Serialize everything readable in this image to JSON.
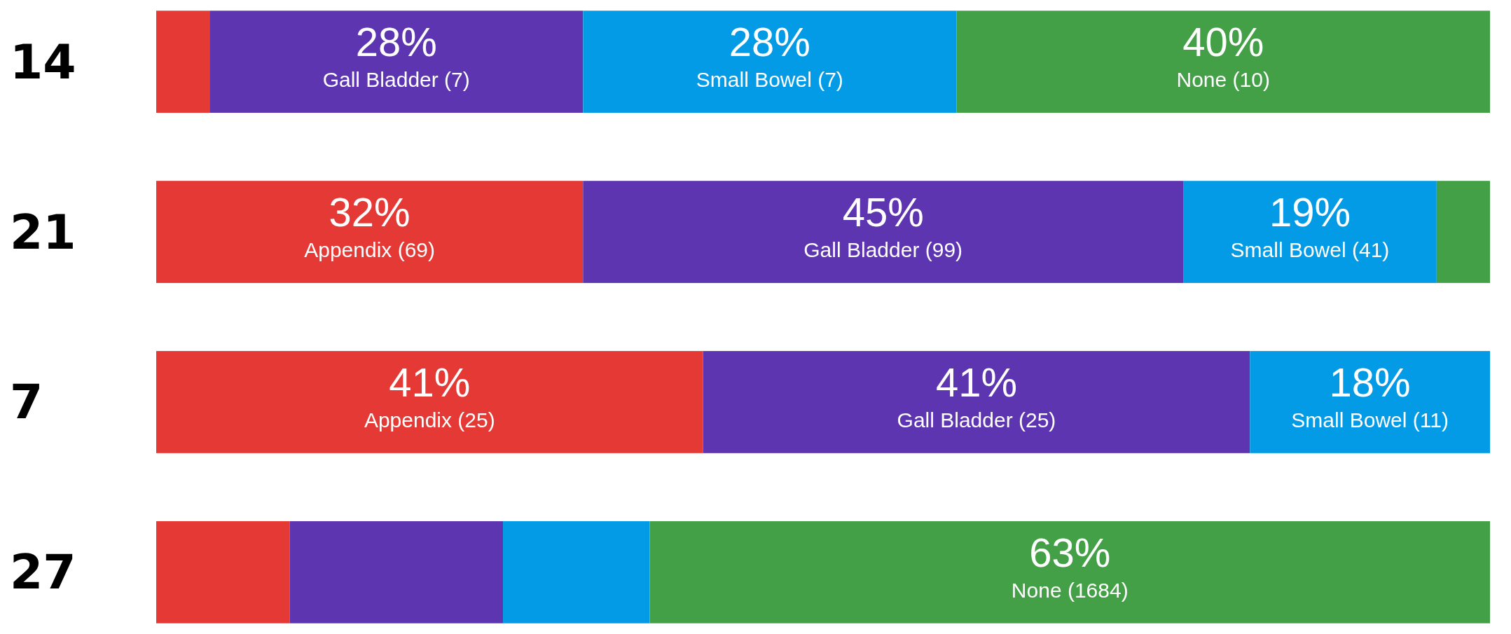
{
  "chart_data": {
    "type": "bar",
    "orientation": "horizontal",
    "stacked": true,
    "xlim": [
      0,
      100
    ],
    "categories": [
      "14",
      "21",
      "7",
      "27"
    ],
    "series": [
      {
        "color": "#e53935",
        "values": [
          4,
          32,
          41,
          10
        ],
        "value_labels": [
          null,
          "32%\nAppendix (69)",
          "41%\nAppendix (25)",
          null
        ]
      },
      {
        "color": "#5e35b1",
        "values": [
          28,
          45,
          41,
          16
        ],
        "value_labels": [
          "28%\nGall Bladder (7)",
          "45%\nGall Bladder (99)",
          "41%\nGall Bladder (25)",
          null
        ]
      },
      {
        "color": "#039be5",
        "values": [
          28,
          19,
          18,
          11
        ],
        "value_labels": [
          "28%\nSmall Bowel (7)",
          "19%\nSmall Bowel (41)",
          "18%\nSmall Bowel (11)",
          null
        ]
      },
      {
        "color": "#43a047",
        "values": [
          40,
          4,
          null,
          63
        ],
        "value_labels": [
          "40%\nNone (10)",
          null,
          null,
          "63%\nNone (1684)"
        ]
      }
    ]
  }
}
